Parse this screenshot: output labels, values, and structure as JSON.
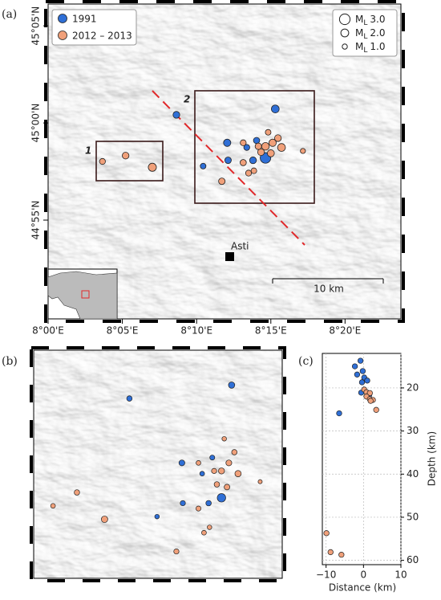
{
  "panel_labels": [
    "(a)",
    "(b)",
    "(c)"
  ],
  "chart_data": [
    {
      "type": "map",
      "xlim": [
        8.0,
        8.396
      ],
      "ylim": [
        44.832,
        45.102
      ],
      "xticks": [
        {
          "value": 8.0,
          "label": "8°00'E"
        },
        {
          "value": 8.0833,
          "label": "8°05'E"
        },
        {
          "value": 8.1667,
          "label": "8°10'E"
        },
        {
          "value": 8.25,
          "label": "8°15'E"
        },
        {
          "value": 8.3333,
          "label": "8°20'E"
        }
      ],
      "yticks": [
        {
          "value": 44.9167,
          "label": "44°55'N"
        },
        {
          "value": 45.0,
          "label": "45°00'N"
        },
        {
          "value": 45.0833,
          "label": "45°05'N"
        }
      ],
      "series": [
        {
          "name": "1991",
          "color": "#2f6fd6",
          "lon": [
            8.255,
            8.201,
            8.174,
            8.202,
            8.23,
            8.234,
            8.244,
            8.144,
            8.223
          ],
          "lat": [
            45.012,
            44.983,
            44.963,
            44.968,
            44.968,
            44.985,
            44.97,
            45.007,
            44.979
          ],
          "magnitude": [
            2.0,
            1.8,
            1.2,
            1.5,
            1.6,
            1.4,
            3.0,
            1.6,
            1.3
          ]
        },
        {
          "name": "2012 – 2013",
          "color": "#f0a07a",
          "lon": [
            8.061,
            8.087,
            8.117,
            8.195,
            8.219,
            8.231,
            8.244,
            8.252,
            8.258,
            8.262,
            8.25,
            8.239,
            8.225,
            8.219,
            8.286,
            8.247,
            8.236
          ],
          "lat": [
            44.967,
            44.972,
            44.962,
            44.95,
            44.966,
            44.959,
            44.98,
            44.983,
            44.987,
            44.979,
            44.974,
            44.975,
            44.957,
            44.983,
            44.976,
            44.992,
            44.98
          ],
          "magnitude": [
            1.3,
            1.6,
            2.1,
            1.5,
            1.4,
            1.2,
            1.9,
            1.8,
            1.6,
            2.0,
            1.7,
            1.6,
            1.3,
            1.3,
            1.0,
            1.2,
            1.5
          ]
        }
      ],
      "size_legend": {
        "symbol": "M",
        "subscript": "L",
        "values": [
          {
            "value": 3,
            "label": "3.0"
          },
          {
            "value": 2,
            "label": "2.0"
          },
          {
            "value": 1,
            "label": "1.0"
          }
        ]
      },
      "area_labels": [
        "1",
        "2"
      ],
      "place": "Asti",
      "scale_label": "10 km"
    },
    {
      "type": "scatter",
      "xlabel": "Distance (km)",
      "ylabel": "Depth (km)",
      "xlim": [
        -11,
        10
      ],
      "ylim": [
        61,
        12
      ],
      "xticks": [
        {
          "value": -10,
          "label": "−10"
        },
        0,
        10
      ],
      "yticks": [
        20,
        30,
        40,
        50,
        60
      ],
      "grid": true,
      "series": [
        {
          "color": "#2f6fd6",
          "x": [
            -0.8,
            -2.3,
            -0.2,
            -1.7,
            0.2,
            -0.4,
            1.0,
            -0.6,
            1.5,
            -6.5
          ],
          "values": [
            13.7,
            15.0,
            16.1,
            16.9,
            17.6,
            18.7,
            18.3,
            21.1,
            21.7,
            25.9
          ]
        },
        {
          "color": "#f0a07a",
          "x": [
            0.2,
            0.8,
            1.7,
            0.8,
            1.7,
            2.5,
            1.9,
            3.4,
            -9.9,
            -8.8,
            -5.9
          ],
          "values": [
            20.4,
            21.0,
            21.2,
            22.0,
            22.6,
            22.8,
            23.0,
            25.1,
            53.7,
            58.1,
            58.7
          ]
        }
      ]
    }
  ]
}
